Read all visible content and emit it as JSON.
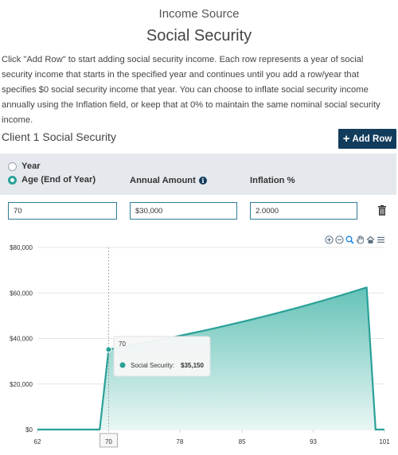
{
  "header": {
    "top_label": "Income Source",
    "title": "Social Security",
    "description": "Click \"Add Row\" to start adding social security income. Each row represents a year of social security income that starts in the specified year and continues until you add a row/year that specifies $0 social security income that year. You can choose to inflate social security income annually using the Inflation field, or keep that at 0% to maintain the same nominal social security income."
  },
  "section": {
    "title": "Client 1 Social Security",
    "add_row_label": "Add Row"
  },
  "table": {
    "radio_year_label": "Year",
    "radio_age_label": "Age (End of Year)",
    "selected_option": "age",
    "col_amount": "Annual Amount",
    "col_inflation": "Inflation %",
    "rows": [
      {
        "age": "70",
        "amount": "$30,000",
        "inflation": "2.0000"
      }
    ]
  },
  "icons": {
    "toolbar": [
      "zoom-in-icon",
      "zoom-out-icon",
      "magnifier-icon",
      "pan-hand-icon",
      "home-icon",
      "menu-icon"
    ],
    "delete": "trash-icon",
    "info": "info-icon"
  },
  "colors": {
    "accent": "#2aa198",
    "button": "#123c5c",
    "area_fill_top": "#5dbfb4",
    "area_fill_bottom": "#e8f6f4"
  },
  "chart_data": {
    "type": "area",
    "x": [
      62,
      69,
      70,
      71,
      72,
      73,
      74,
      75,
      76,
      77,
      78,
      79,
      80,
      81,
      82,
      83,
      84,
      85,
      86,
      87,
      88,
      89,
      90,
      91,
      92,
      93,
      94,
      95,
      96,
      97,
      98,
      99,
      100,
      101
    ],
    "values": [
      0,
      0,
      35150,
      35853,
      36570,
      37301,
      38047,
      38808,
      39584,
      40376,
      41184,
      42007,
      42847,
      43704,
      44578,
      45470,
      46379,
      47307,
      48253,
      49218,
      50202,
      51206,
      52230,
      53275,
      54341,
      55427,
      56536,
      57666,
      58820,
      59996,
      61196,
      62420,
      0,
      0
    ],
    "series_name": "Social Security",
    "xticks": [
      "62",
      "70",
      "78",
      "85",
      "93",
      "101"
    ],
    "yticks": [
      "$0",
      "$20,000",
      "$40,000",
      "$60,000",
      "$80,000"
    ],
    "ylim": [
      0,
      80000
    ],
    "xlim": [
      62,
      101
    ],
    "crosshair_label": "70",
    "tooltip": {
      "title": "70",
      "series_label": "Social Security:",
      "value": "$35,150"
    }
  }
}
